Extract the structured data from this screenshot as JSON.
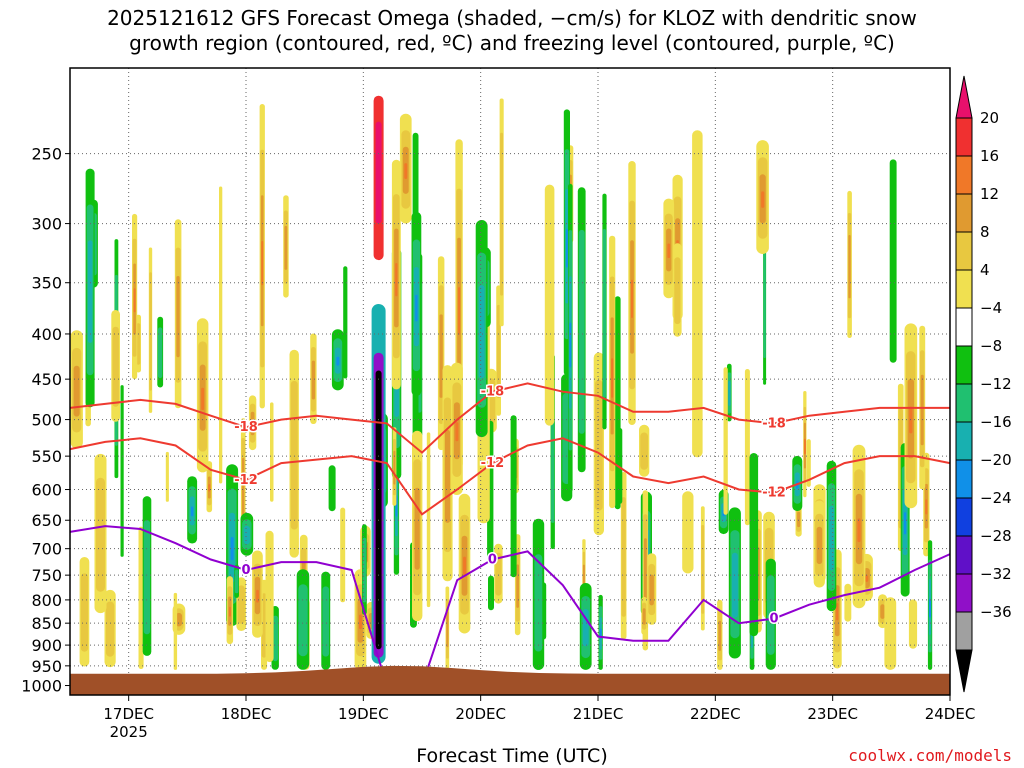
{
  "header": {
    "title_line1": "2025121612 GFS Forecast Omega (shaded, −cm/s) for KLOZ with dendritic snow",
    "title_line2": "growth region (contoured, red, ºC) and freezing level (contoured, purple, ºC)"
  },
  "footer": {
    "xlabel": "Forecast Time (UTC)",
    "credit": "coolwx.com/models"
  },
  "chart_data": {
    "type": "heatmap",
    "xlabel": "Forecast Time (UTC)",
    "x_tick_labels": [
      "17DEC",
      "18DEC",
      "19DEC",
      "20DEC",
      "21DEC",
      "22DEC",
      "23DEC",
      "24DEC"
    ],
    "x_year_label": "2025",
    "x_range_days": [
      16.5,
      24.0
    ],
    "y_tick_labels": [
      "250",
      "300",
      "350",
      "400",
      "450",
      "500",
      "550",
      "600",
      "650",
      "700",
      "750",
      "800",
      "850",
      "900",
      "950",
      "1000"
    ],
    "y_range_hpa": [
      200,
      1025
    ],
    "y_scale": "log-pressure",
    "colorbar": {
      "labels": [
        "20",
        "16",
        "12",
        "8",
        "4",
        "−4",
        "−8",
        "−12",
        "−16",
        "−20",
        "−24",
        "−28",
        "−32",
        "−36"
      ],
      "colors": [
        "#e8106c",
        "#f03030",
        "#f07828",
        "#e09a30",
        "#e8c840",
        "#f0e050",
        "#ffffff",
        "#10c010",
        "#20c070",
        "#18b0b0",
        "#1090e8",
        "#1040e0",
        "#6010c8",
        "#9010c8",
        "#a0a0a0",
        "#000000"
      ]
    },
    "dgz_contours": [
      {
        "label": "-18",
        "level_hpa": [
          485,
          480,
          475,
          480,
          495,
          510,
          500,
          495,
          500,
          505,
          545,
          500,
          465,
          455,
          465,
          470,
          490,
          490,
          485,
          500,
          505,
          495,
          490,
          485,
          485,
          485
        ]
      },
      {
        "label": "-12",
        "level_hpa": [
          540,
          530,
          525,
          535,
          570,
          585,
          560,
          555,
          550,
          560,
          640,
          600,
          560,
          535,
          525,
          545,
          580,
          590,
          580,
          600,
          605,
          585,
          560,
          550,
          550,
          560
        ]
      }
    ],
    "freezing_level_contour": {
      "label": "0",
      "level_hpa": [
        670,
        660,
        665,
        690,
        720,
        740,
        725,
        725,
        740,
        1000,
        1000,
        760,
        720,
        705,
        770,
        880,
        890,
        890,
        800,
        850,
        840,
        810,
        790,
        775,
        740,
        710
      ]
    },
    "contour_labels": [
      "-18",
      "-12",
      "0"
    ],
    "colors": {
      "dgz": "#ee3a30",
      "freezing_level": "#9000d0",
      "terrain": "#a05028"
    }
  }
}
